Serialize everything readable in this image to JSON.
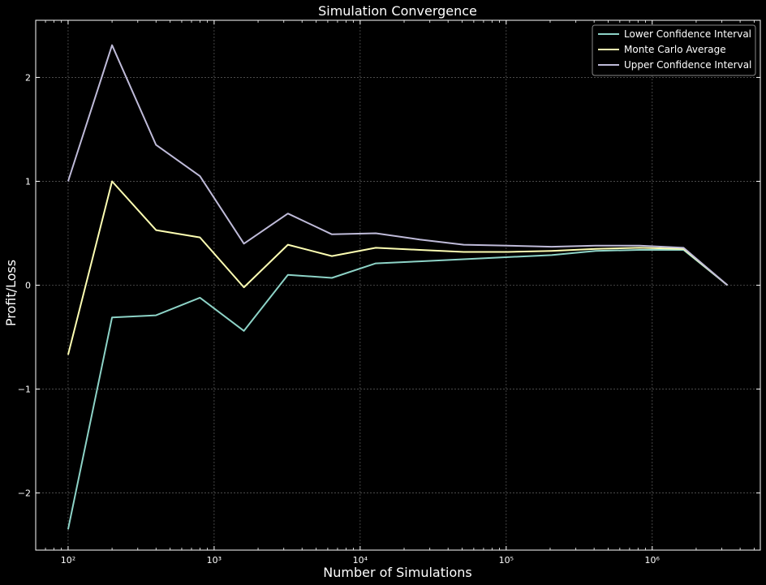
{
  "chart_data": {
    "type": "line",
    "title": "Simulation Convergence",
    "xlabel": "Number of Simulations",
    "ylabel": "Profit/Loss",
    "x_scale": "log",
    "xlim": [
      60,
      5500000
    ],
    "ylim": [
      -2.55,
      2.55
    ],
    "x_ticks": [
      {
        "value": 100,
        "label": "10²"
      },
      {
        "value": 1000,
        "label": "10³"
      },
      {
        "value": 10000,
        "label": "10⁴"
      },
      {
        "value": 100000,
        "label": "10⁵"
      },
      {
        "value": 1000000,
        "label": "10⁶"
      }
    ],
    "y_ticks": [
      {
        "value": -2,
        "label": "−2"
      },
      {
        "value": -1,
        "label": "−1"
      },
      {
        "value": 0,
        "label": "0"
      },
      {
        "value": 1,
        "label": "1"
      },
      {
        "value": 2,
        "label": "2"
      }
    ],
    "grid": true,
    "legend_position": "top-right",
    "x": [
      100,
      200,
      400,
      800,
      1600,
      3200,
      6400,
      12800,
      25600,
      51200,
      102400,
      204800,
      409600,
      819200,
      1638400,
      3276800
    ],
    "series": [
      {
        "name": "Lower Confidence Interval",
        "color": "#8dd3c7",
        "values": [
          -2.35,
          -0.31,
          -0.29,
          -0.12,
          -0.44,
          0.1,
          0.07,
          0.21,
          0.23,
          0.25,
          0.27,
          0.29,
          0.33,
          0.34,
          0.34,
          0.0
        ]
      },
      {
        "name": "Monte Carlo Average",
        "color": "#feffb3",
        "values": [
          -0.67,
          1.0,
          0.53,
          0.46,
          -0.02,
          0.39,
          0.28,
          0.36,
          0.34,
          0.32,
          0.32,
          0.33,
          0.35,
          0.36,
          0.35,
          0.0
        ]
      },
      {
        "name": "Upper Confidence Interval",
        "color": "#bfbbd9",
        "values": [
          1.0,
          2.31,
          1.35,
          1.05,
          0.4,
          0.69,
          0.49,
          0.5,
          0.44,
          0.39,
          0.38,
          0.37,
          0.38,
          0.38,
          0.36,
          0.0
        ]
      }
    ]
  }
}
